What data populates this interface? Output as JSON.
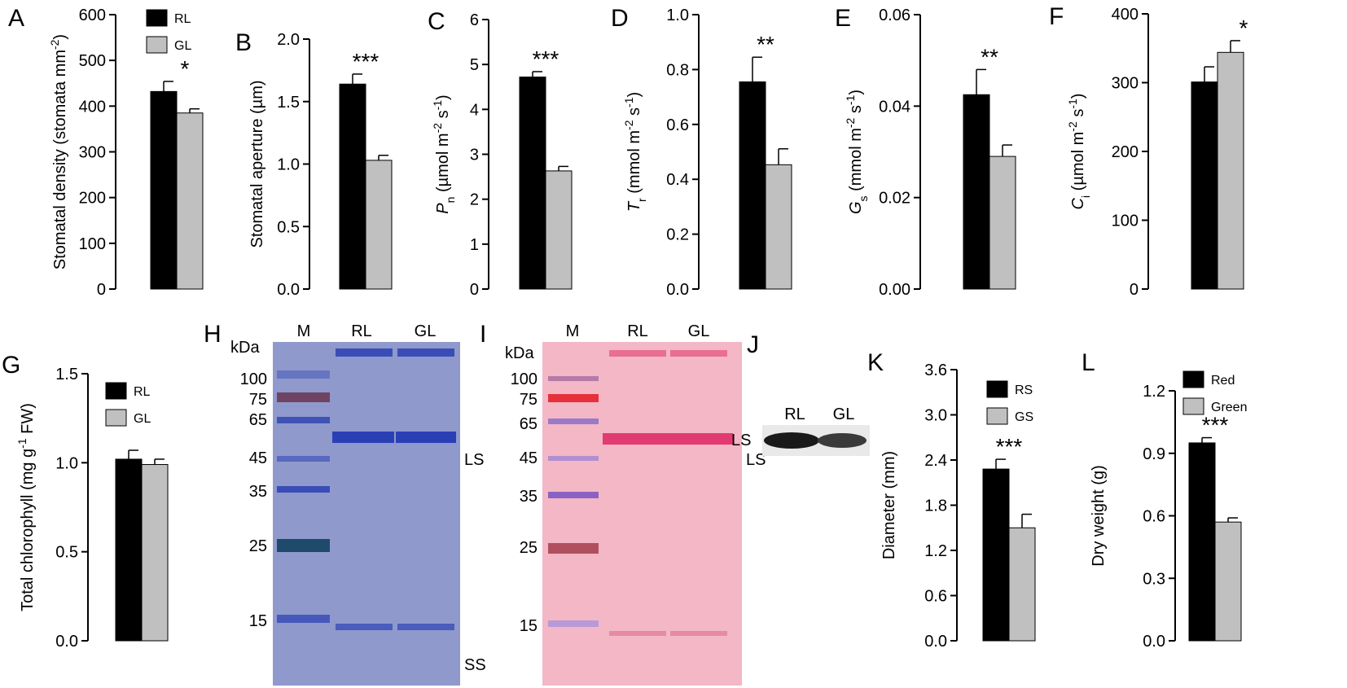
{
  "colors": {
    "bar_dark": "#000000",
    "bar_light": "#c0c0c0",
    "coomassie_bg": "#8f99cc",
    "coomassie_band": "#2b3fb5",
    "ponceau_bg": "#f3b7c6",
    "ponceau_band": "#e23b72",
    "western_bg": "#e9e9e9",
    "western_band": "#1a1a1a"
  },
  "chart_data": [
    {
      "id": "A",
      "panel_label": "A",
      "type": "bar",
      "ylabel": "Stomatal density (stomata mm",
      "ylabel_sup": "-2",
      "ylabel_tail": ")",
      "ylim": [
        0,
        600
      ],
      "ticks": [
        "0",
        "100",
        "200",
        "300",
        "400",
        "500",
        "600"
      ],
      "legend": [
        "RL",
        "GL"
      ],
      "series": [
        {
          "name": "RL",
          "values": [
            432
          ],
          "errors": [
            22
          ]
        },
        {
          "name": "GL",
          "values": [
            385
          ],
          "errors": [
            9
          ]
        }
      ],
      "significance": "*"
    },
    {
      "id": "B",
      "panel_label": "B",
      "type": "bar",
      "ylabel": "Stomatal aperture (µm)",
      "ylim": [
        0,
        2.0
      ],
      "ticks": [
        "0.0",
        "0.5",
        "1.0",
        "1.5",
        "2.0"
      ],
      "series": [
        {
          "name": "RL",
          "values": [
            1.64
          ],
          "errors": [
            0.08
          ]
        },
        {
          "name": "GL",
          "values": [
            1.03
          ],
          "errors": [
            0.04
          ]
        }
      ],
      "significance": "***"
    },
    {
      "id": "C",
      "panel_label": "C",
      "type": "bar",
      "ylabel_italic": "P",
      "ylabel_sub": "n",
      "ylabel": " (µmol m",
      "ylabel_sup": "-2",
      "ylabel_mid": " s",
      "ylabel_sup2": "-1",
      "ylabel_tail": ")",
      "ylim": [
        0,
        6
      ],
      "ticks": [
        "0",
        "1",
        "2",
        "3",
        "4",
        "5",
        "6"
      ],
      "series": [
        {
          "name": "RL",
          "values": [
            4.72
          ],
          "errors": [
            0.12
          ]
        },
        {
          "name": "GL",
          "values": [
            2.63
          ],
          "errors": [
            0.1
          ]
        }
      ],
      "significance": "***"
    },
    {
      "id": "D",
      "panel_label": "D",
      "type": "bar",
      "ylabel_italic": "T",
      "ylabel_sub": "r",
      "ylabel": " (mmol m",
      "ylabel_sup": "-2",
      "ylabel_mid": " s",
      "ylabel_sup2": "-1",
      "ylabel_tail": ")",
      "ylim": [
        0,
        1.0
      ],
      "ticks": [
        "0.0",
        "0.2",
        "0.4",
        "0.6",
        "0.8",
        "1.0"
      ],
      "series": [
        {
          "name": "RL",
          "values": [
            0.755
          ],
          "errors": [
            0.09
          ]
        },
        {
          "name": "GL",
          "values": [
            0.453
          ],
          "errors": [
            0.058
          ]
        }
      ],
      "significance": "**"
    },
    {
      "id": "E",
      "panel_label": "E",
      "type": "bar",
      "ylabel_italic": "G",
      "ylabel_sub": "s",
      "ylabel": " (mmol m",
      "ylabel_sup": "-2",
      "ylabel_mid": " s",
      "ylabel_sup2": "-1",
      "ylabel_tail": ")",
      "ylim": [
        0,
        0.06
      ],
      "ticks": [
        "0.00",
        "0.02",
        "0.04",
        "0.06"
      ],
      "series": [
        {
          "name": "RL",
          "values": [
            0.0425
          ],
          "errors": [
            0.0055
          ]
        },
        {
          "name": "GL",
          "values": [
            0.029
          ],
          "errors": [
            0.0025
          ]
        }
      ],
      "significance": "**"
    },
    {
      "id": "F",
      "panel_label": "F",
      "type": "bar",
      "ylabel_italic": "C",
      "ylabel_sub": "i",
      "ylabel": " (µmol m",
      "ylabel_sup": "-2",
      "ylabel_mid": " s",
      "ylabel_sup2": "-1",
      "ylabel_tail": ")",
      "ylim": [
        0,
        400
      ],
      "ticks": [
        "0",
        "100",
        "200",
        "300",
        "400"
      ],
      "series": [
        {
          "name": "RL",
          "values": [
            301
          ],
          "errors": [
            22
          ]
        },
        {
          "name": "GL",
          "values": [
            344
          ],
          "errors": [
            17
          ]
        }
      ],
      "significance": "*"
    },
    {
      "id": "G",
      "panel_label": "G",
      "type": "bar",
      "ylabel": "Total chlorophyll (mg g",
      "ylabel_sup": "-1",
      "ylabel_tail": " FW)",
      "ylim": [
        0,
        1.5
      ],
      "ticks": [
        "0.0",
        "0.5",
        "1.0",
        "1.5"
      ],
      "legend": [
        "RL",
        "GL"
      ],
      "series": [
        {
          "name": "RL",
          "values": [
            1.02
          ],
          "errors": [
            0.05
          ]
        },
        {
          "name": "GL",
          "values": [
            0.99
          ],
          "errors": [
            0.03
          ]
        }
      ],
      "significance": ""
    },
    {
      "id": "K",
      "panel_label": "K",
      "type": "bar",
      "ylabel": "Diameter (mm)",
      "ylim": [
        0,
        3.6
      ],
      "ticks": [
        "0.0",
        "0.6",
        "1.2",
        "1.8",
        "2.4",
        "3.0",
        "3.6"
      ],
      "legend": [
        "RS",
        "GS"
      ],
      "series": [
        {
          "name": "RS",
          "values": [
            2.28
          ],
          "errors": [
            0.13
          ]
        },
        {
          "name": "GS",
          "values": [
            1.5
          ],
          "errors": [
            0.18
          ]
        }
      ],
      "significance": "***"
    },
    {
      "id": "L",
      "panel_label": "L",
      "type": "bar",
      "ylabel": "Dry weight (g)",
      "ylim": [
        0,
        1.2
      ],
      "ticks": [
        "0.0",
        "0.3",
        "0.6",
        "0.9",
        "1.2"
      ],
      "legend": [
        "Red",
        "Green"
      ],
      "series": [
        {
          "name": "Red",
          "values": [
            0.95
          ],
          "errors": [
            0.025
          ]
        },
        {
          "name": "Green",
          "values": [
            0.57
          ],
          "errors": [
            0.02
          ]
        }
      ],
      "significance": "***"
    }
  ],
  "gels": {
    "H": {
      "panel_label": "H",
      "unit": "kDa",
      "lanes": [
        "M",
        "RL",
        "GL"
      ],
      "markers": [
        "100",
        "75",
        "65",
        "45",
        "35",
        "25",
        "15"
      ],
      "bands": [
        "LS",
        "SS"
      ]
    },
    "I": {
      "panel_label": "I",
      "unit": "kDa",
      "lanes": [
        "M",
        "RL",
        "GL"
      ],
      "markers": [
        "100",
        "75",
        "65",
        "45",
        "35",
        "25",
        "15"
      ],
      "bands": [
        "LS"
      ]
    },
    "J": {
      "panel_label": "J",
      "lanes": [
        "RL",
        "GL"
      ],
      "bands": [
        "LS"
      ]
    }
  }
}
